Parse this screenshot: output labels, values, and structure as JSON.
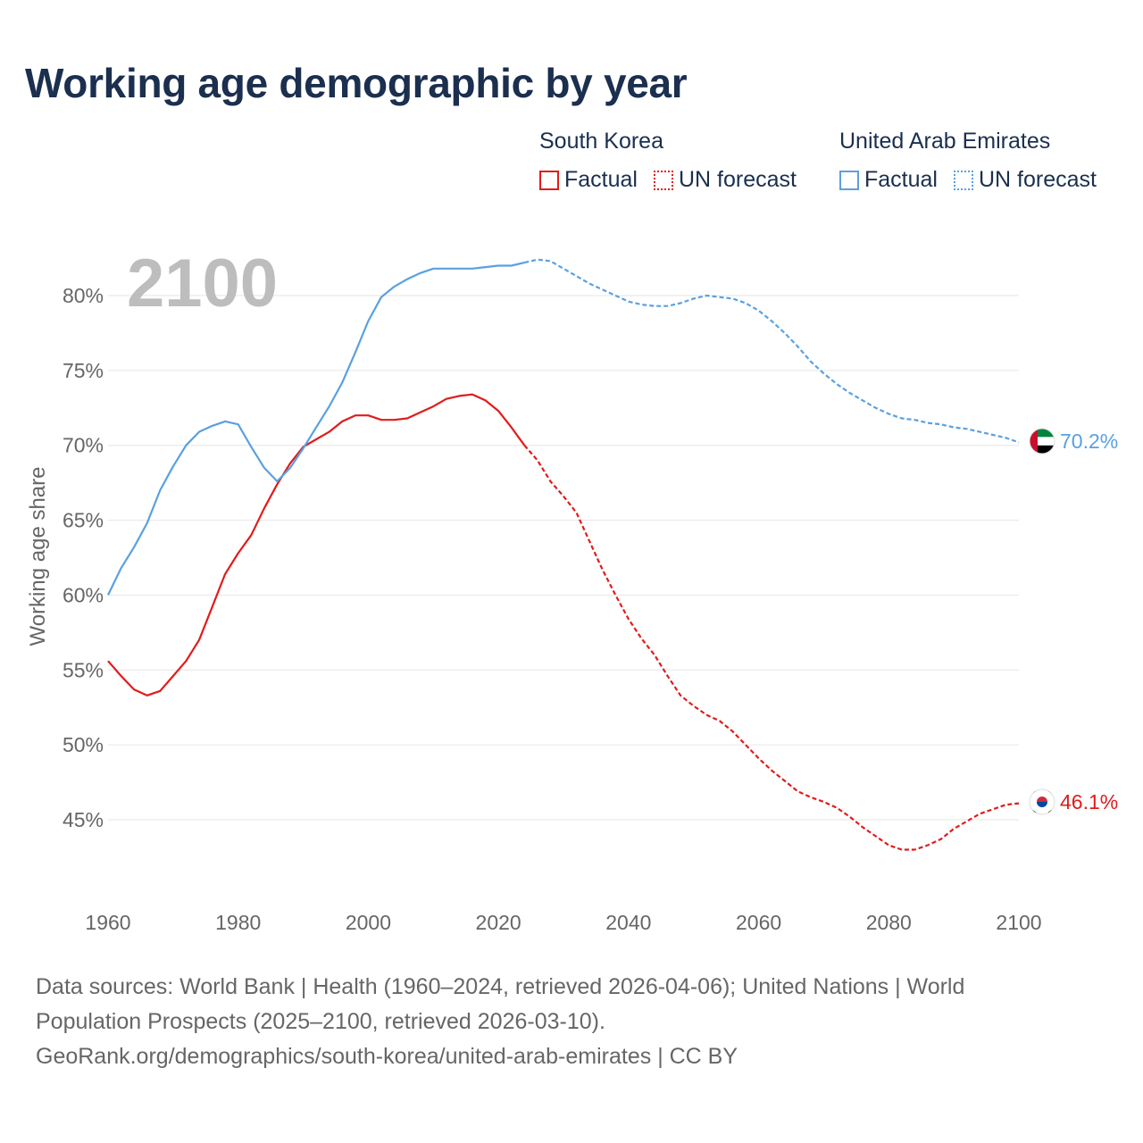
{
  "title": "Working age demographic by year",
  "legend": {
    "groups": [
      {
        "name": "South Korea",
        "factual_label": "Factual",
        "forecast_label": "UN forecast",
        "color": "#e11b1b"
      },
      {
        "name": "United Arab Emirates",
        "factual_label": "Factual",
        "forecast_label": "UN forecast",
        "color": "#5aa0e0"
      }
    ]
  },
  "year_watermark": "2100",
  "footer": {
    "line1": "Data sources: World Bank | Health (1960–2024, retrieved 2026-04-06); United Nations | World",
    "line2": "Population Prospects (2025–2100, retrieved 2026-03-10).",
    "line3": "GeoRank.org/demographics/south-korea/united-arab-emirates | CC BY"
  },
  "chart_data": {
    "type": "line",
    "title": "Working age demographic by year",
    "xlabel": "",
    "ylabel": "Working age share",
    "xlim": [
      1960,
      2100
    ],
    "ylim": [
      40,
      84
    ],
    "x_ticks": [
      1960,
      1980,
      2000,
      2020,
      2040,
      2060,
      2080,
      2100
    ],
    "x_tick_labels": [
      "1960",
      "1980",
      "2000",
      "2020",
      "2040",
      "2060",
      "2080",
      "2100"
    ],
    "y_ticks": [
      45,
      50,
      55,
      60,
      65,
      70,
      75,
      80
    ],
    "y_tick_labels": [
      "45%",
      "50%",
      "55%",
      "60%",
      "65%",
      "70%",
      "75%",
      "80%"
    ],
    "grid": true,
    "factual_end_year": 2024,
    "series": [
      {
        "name": "South Korea",
        "color": "#e11b1b",
        "end_label": "46.1%",
        "flag": "south-korea",
        "points": [
          [
            1960,
            55.6
          ],
          [
            1962,
            54.6
          ],
          [
            1964,
            53.7
          ],
          [
            1966,
            53.3
          ],
          [
            1968,
            53.6
          ],
          [
            1970,
            54.6
          ],
          [
            1972,
            55.6
          ],
          [
            1974,
            57.0
          ],
          [
            1976,
            59.2
          ],
          [
            1978,
            61.4
          ],
          [
            1980,
            62.8
          ],
          [
            1982,
            64.0
          ],
          [
            1984,
            65.8
          ],
          [
            1986,
            67.4
          ],
          [
            1988,
            68.8
          ],
          [
            1990,
            69.9
          ],
          [
            1992,
            70.4
          ],
          [
            1994,
            70.9
          ],
          [
            1996,
            71.6
          ],
          [
            1998,
            72.0
          ],
          [
            2000,
            72.0
          ],
          [
            2002,
            71.7
          ],
          [
            2004,
            71.7
          ],
          [
            2006,
            71.8
          ],
          [
            2008,
            72.2
          ],
          [
            2010,
            72.6
          ],
          [
            2012,
            73.1
          ],
          [
            2014,
            73.3
          ],
          [
            2016,
            73.4
          ],
          [
            2018,
            73.0
          ],
          [
            2020,
            72.3
          ],
          [
            2022,
            71.2
          ],
          [
            2024,
            70.0
          ],
          [
            2026,
            69.0
          ],
          [
            2028,
            67.6
          ],
          [
            2030,
            66.6
          ],
          [
            2032,
            65.5
          ],
          [
            2034,
            63.6
          ],
          [
            2036,
            61.7
          ],
          [
            2038,
            60.0
          ],
          [
            2040,
            58.4
          ],
          [
            2042,
            57.1
          ],
          [
            2044,
            56.0
          ],
          [
            2046,
            54.6
          ],
          [
            2048,
            53.3
          ],
          [
            2050,
            52.6
          ],
          [
            2052,
            52.0
          ],
          [
            2054,
            51.6
          ],
          [
            2056,
            50.9
          ],
          [
            2058,
            50.0
          ],
          [
            2060,
            49.1
          ],
          [
            2062,
            48.3
          ],
          [
            2064,
            47.6
          ],
          [
            2066,
            46.9
          ],
          [
            2068,
            46.5
          ],
          [
            2070,
            46.2
          ],
          [
            2072,
            45.8
          ],
          [
            2074,
            45.2
          ],
          [
            2076,
            44.5
          ],
          [
            2078,
            43.9
          ],
          [
            2080,
            43.3
          ],
          [
            2082,
            43.0
          ],
          [
            2084,
            43.0
          ],
          [
            2086,
            43.3
          ],
          [
            2088,
            43.7
          ],
          [
            2090,
            44.4
          ],
          [
            2092,
            44.9
          ],
          [
            2094,
            45.4
          ],
          [
            2096,
            45.7
          ],
          [
            2098,
            46.0
          ],
          [
            2100,
            46.1
          ]
        ]
      },
      {
        "name": "United Arab Emirates",
        "color": "#5aa0e0",
        "end_label": "70.2%",
        "flag": "united-arab-emirates",
        "points": [
          [
            1960,
            60.0
          ],
          [
            1962,
            61.8
          ],
          [
            1964,
            63.2
          ],
          [
            1966,
            64.8
          ],
          [
            1968,
            67.0
          ],
          [
            1970,
            68.6
          ],
          [
            1972,
            70.0
          ],
          [
            1974,
            70.9
          ],
          [
            1976,
            71.3
          ],
          [
            1978,
            71.6
          ],
          [
            1980,
            71.4
          ],
          [
            1982,
            69.9
          ],
          [
            1984,
            68.5
          ],
          [
            1986,
            67.6
          ],
          [
            1988,
            68.5
          ],
          [
            1990,
            69.8
          ],
          [
            1992,
            71.2
          ],
          [
            1994,
            72.6
          ],
          [
            1996,
            74.2
          ],
          [
            1998,
            76.2
          ],
          [
            2000,
            78.3
          ],
          [
            2002,
            79.9
          ],
          [
            2004,
            80.6
          ],
          [
            2006,
            81.1
          ],
          [
            2008,
            81.5
          ],
          [
            2010,
            81.8
          ],
          [
            2012,
            81.8
          ],
          [
            2014,
            81.8
          ],
          [
            2016,
            81.8
          ],
          [
            2018,
            81.9
          ],
          [
            2020,
            82.0
          ],
          [
            2022,
            82.0
          ],
          [
            2024,
            82.2
          ],
          [
            2026,
            82.4
          ],
          [
            2028,
            82.3
          ],
          [
            2030,
            81.8
          ],
          [
            2032,
            81.3
          ],
          [
            2034,
            80.8
          ],
          [
            2036,
            80.4
          ],
          [
            2038,
            80.0
          ],
          [
            2040,
            79.6
          ],
          [
            2042,
            79.4
          ],
          [
            2044,
            79.3
          ],
          [
            2046,
            79.3
          ],
          [
            2048,
            79.5
          ],
          [
            2050,
            79.8
          ],
          [
            2052,
            80.0
          ],
          [
            2054,
            79.9
          ],
          [
            2056,
            79.8
          ],
          [
            2058,
            79.5
          ],
          [
            2060,
            79.0
          ],
          [
            2062,
            78.3
          ],
          [
            2064,
            77.5
          ],
          [
            2066,
            76.6
          ],
          [
            2068,
            75.6
          ],
          [
            2070,
            74.8
          ],
          [
            2072,
            74.1
          ],
          [
            2074,
            73.5
          ],
          [
            2076,
            73.0
          ],
          [
            2078,
            72.5
          ],
          [
            2080,
            72.1
          ],
          [
            2082,
            71.8
          ],
          [
            2084,
            71.7
          ],
          [
            2086,
            71.5
          ],
          [
            2088,
            71.4
          ],
          [
            2090,
            71.2
          ],
          [
            2092,
            71.1
          ],
          [
            2094,
            70.9
          ],
          [
            2096,
            70.7
          ],
          [
            2098,
            70.5
          ],
          [
            2100,
            70.2
          ]
        ]
      }
    ]
  }
}
